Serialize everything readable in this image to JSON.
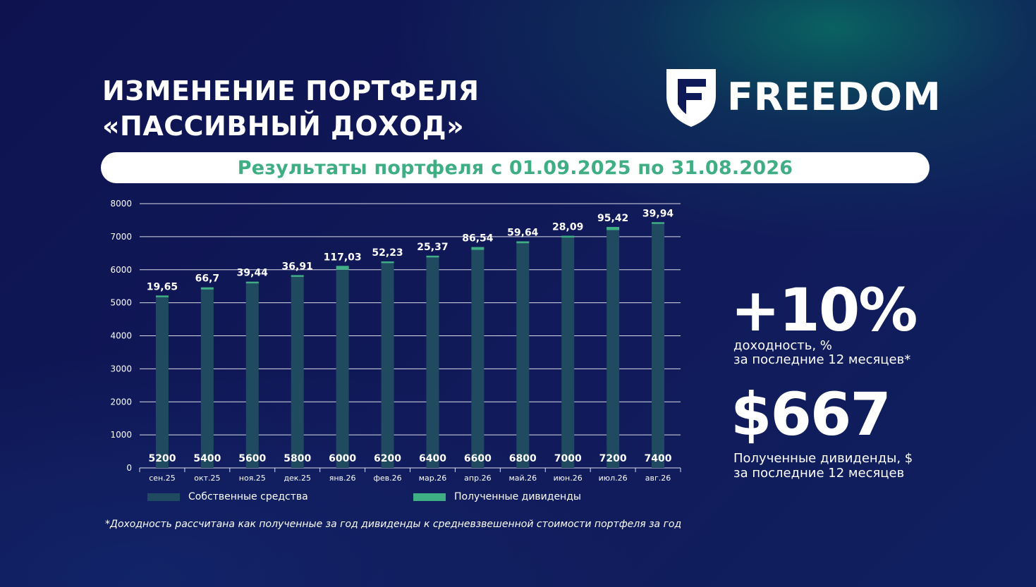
{
  "title": {
    "line1": "ИЗМЕНЕНИЕ ПОРТФЕЛЯ",
    "line2": "«ПАССИВНЫЙ ДОХОД»"
  },
  "logo": {
    "text": "FREEDOM",
    "icon": "freedom-shield-icon"
  },
  "banner": {
    "text": "Результаты портфеля с 01.09.2025 по 31.08.2026"
  },
  "chart_data": {
    "type": "bar",
    "stacked": true,
    "categories": [
      "сен.25",
      "окт.25",
      "ноя.25",
      "дек.25",
      "янв.26",
      "фев.26",
      "мар.26",
      "апр.26",
      "май.26",
      "июн.26",
      "июл.26",
      "авг.26"
    ],
    "series": [
      {
        "name": "Собственные средства",
        "color": "#1f4a5f",
        "values": [
          5200,
          5400,
          5600,
          5800,
          6000,
          6200,
          6400,
          6600,
          6800,
          7000,
          7200,
          7400
        ],
        "labels": [
          "5200",
          "5400",
          "5600",
          "5800",
          "6000",
          "6200",
          "6400",
          "6600",
          "6800",
          "7000",
          "7200",
          "7400"
        ]
      },
      {
        "name": "Полученные дивиденды",
        "color": "#3fae84",
        "values": [
          19.65,
          66.7,
          39.44,
          36.91,
          117.03,
          52.23,
          25.37,
          86.54,
          59.64,
          28.09,
          95.42,
          39.94
        ],
        "labels": [
          "19,65",
          "66,7",
          "39,44",
          "36,91",
          "117,03",
          "52,23",
          "25,37",
          "86,54",
          "59,64",
          "28,09",
          "95,42",
          "39,94"
        ]
      }
    ],
    "ylim": [
      0,
      8000
    ],
    "yticks": [
      "0",
      "1000",
      "2000",
      "3000",
      "4000",
      "5000",
      "6000",
      "7000",
      "8000"
    ],
    "grid": true,
    "legend": "bottom"
  },
  "stats": {
    "yield_value": "+10%",
    "yield_caption_line1": "доходность, %",
    "yield_caption_line2": "за последние 12 месяцев*",
    "dividends_value": "$667",
    "dividends_caption_line1": "Полученные дивиденды, $",
    "dividends_caption_line2": "за последние 12 месяцев"
  },
  "footnote": "*Доходность рассчитана как полученные за год дивиденды к средневзвешенной стоимости портфеля за год"
}
